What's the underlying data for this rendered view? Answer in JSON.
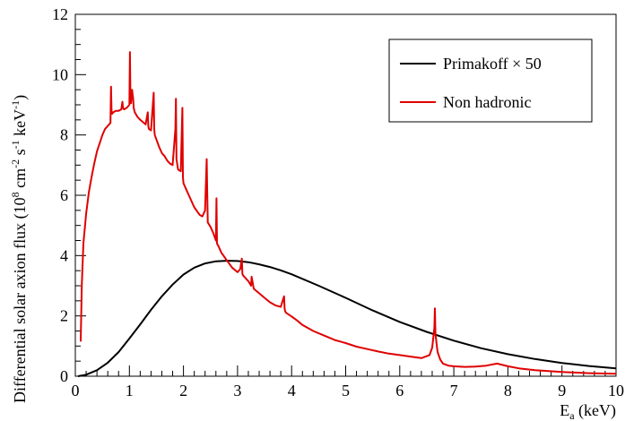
{
  "chart_data": {
    "type": "line",
    "xlabel": "E",
    "xlabel_sub": "a",
    "xlabel_unit": " (keV)",
    "ylabel_prefix": "Differential solar axion flux (10",
    "ylabel_exp1": "8",
    "ylabel_mid1": " cm",
    "ylabel_exp2": "-2",
    "ylabel_mid2": " s",
    "ylabel_exp3": "-1",
    "ylabel_mid3": " keV",
    "ylabel_exp4": "-1",
    "ylabel_suffix": ")",
    "xlim": [
      0,
      10
    ],
    "ylim": [
      0,
      12
    ],
    "xticks": [
      "0",
      "1",
      "2",
      "3",
      "4",
      "5",
      "6",
      "7",
      "8",
      "9",
      "10"
    ],
    "yticks": [
      "0",
      "2",
      "4",
      "6",
      "8",
      "10",
      "12"
    ],
    "grid": false,
    "legend_position": "top-right",
    "series": [
      {
        "name": "Primakoff × 50",
        "color": "#000000",
        "x": [
          0.05,
          0.2,
          0.4,
          0.6,
          0.8,
          1.0,
          1.2,
          1.4,
          1.6,
          1.8,
          2.0,
          2.2,
          2.4,
          2.6,
          2.8,
          3.0,
          3.2,
          3.4,
          3.6,
          3.8,
          4.0,
          4.5,
          5.0,
          5.5,
          6.0,
          6.5,
          7.0,
          7.5,
          8.0,
          8.5,
          9.0,
          9.5,
          10.0
        ],
        "y": [
          0.0,
          0.05,
          0.2,
          0.45,
          0.8,
          1.25,
          1.72,
          2.2,
          2.65,
          3.04,
          3.37,
          3.6,
          3.74,
          3.81,
          3.83,
          3.82,
          3.78,
          3.71,
          3.62,
          3.51,
          3.38,
          3.0,
          2.6,
          2.18,
          1.8,
          1.47,
          1.18,
          0.93,
          0.73,
          0.57,
          0.44,
          0.34,
          0.26
        ]
      },
      {
        "name": "Non hadronic",
        "color": "#e00000",
        "x": [
          0.1,
          0.12,
          0.15,
          0.2,
          0.25,
          0.3,
          0.35,
          0.4,
          0.5,
          0.55,
          0.6,
          0.65,
          0.66,
          0.67,
          0.68,
          0.7,
          0.75,
          0.8,
          0.85,
          0.87,
          0.88,
          0.9,
          0.95,
          1.0,
          1.01,
          1.02,
          1.03,
          1.05,
          1.07,
          1.08,
          1.1,
          1.15,
          1.2,
          1.3,
          1.34,
          1.35,
          1.36,
          1.4,
          1.45,
          1.46,
          1.47,
          1.5,
          1.55,
          1.6,
          1.65,
          1.7,
          1.75,
          1.8,
          1.85,
          1.86,
          1.87,
          1.9,
          1.95,
          1.98,
          1.99,
          2.0,
          2.05,
          2.1,
          2.2,
          2.3,
          2.35,
          2.4,
          2.43,
          2.44,
          2.45,
          2.5,
          2.55,
          2.6,
          2.61,
          2.62,
          2.65,
          2.7,
          2.8,
          2.9,
          3.0,
          3.05,
          3.08,
          3.09,
          3.1,
          3.15,
          3.2,
          3.25,
          3.26,
          3.3,
          3.4,
          3.5,
          3.6,
          3.7,
          3.8,
          3.86,
          3.87,
          3.88,
          3.9,
          4.0,
          4.1,
          4.2,
          4.4,
          4.6,
          4.8,
          5.0,
          5.2,
          5.4,
          5.6,
          5.8,
          6.0,
          6.2,
          6.4,
          6.55,
          6.6,
          6.64,
          6.65,
          6.66,
          6.7,
          6.75,
          6.8,
          6.9,
          7.0,
          7.2,
          7.4,
          7.6,
          7.8,
          8.0,
          8.2,
          8.5,
          9.0,
          9.5,
          10.0
        ],
        "y": [
          1.15,
          3.0,
          4.4,
          5.4,
          6.1,
          6.6,
          7.05,
          7.45,
          8.0,
          8.2,
          8.3,
          8.4,
          9.6,
          8.8,
          8.7,
          8.75,
          8.8,
          8.8,
          8.85,
          9.1,
          8.9,
          8.85,
          8.9,
          9.0,
          10.75,
          9.2,
          9.05,
          9.5,
          9.2,
          8.9,
          8.75,
          8.6,
          8.5,
          8.35,
          8.75,
          8.3,
          8.2,
          8.15,
          9.4,
          8.2,
          8.0,
          7.85,
          7.6,
          7.4,
          7.3,
          7.15,
          7.05,
          7.0,
          8.2,
          9.2,
          7.2,
          6.85,
          6.8,
          8.9,
          6.6,
          6.4,
          6.2,
          6.0,
          5.6,
          5.35,
          5.3,
          5.5,
          7.2,
          6.1,
          5.1,
          4.95,
          4.75,
          4.5,
          5.9,
          4.4,
          4.3,
          4.1,
          3.85,
          3.6,
          3.45,
          3.55,
          3.9,
          3.4,
          3.35,
          3.25,
          3.15,
          3.0,
          3.3,
          2.9,
          2.75,
          2.6,
          2.45,
          2.35,
          2.3,
          2.65,
          2.25,
          2.15,
          2.1,
          1.98,
          1.85,
          1.7,
          1.5,
          1.35,
          1.2,
          1.1,
          0.98,
          0.9,
          0.82,
          0.75,
          0.7,
          0.65,
          0.6,
          0.7,
          0.95,
          1.6,
          2.25,
          1.4,
          0.8,
          0.55,
          0.42,
          0.35,
          0.33,
          0.31,
          0.32,
          0.35,
          0.42,
          0.33,
          0.26,
          0.2,
          0.14,
          0.1,
          0.08
        ]
      }
    ]
  }
}
